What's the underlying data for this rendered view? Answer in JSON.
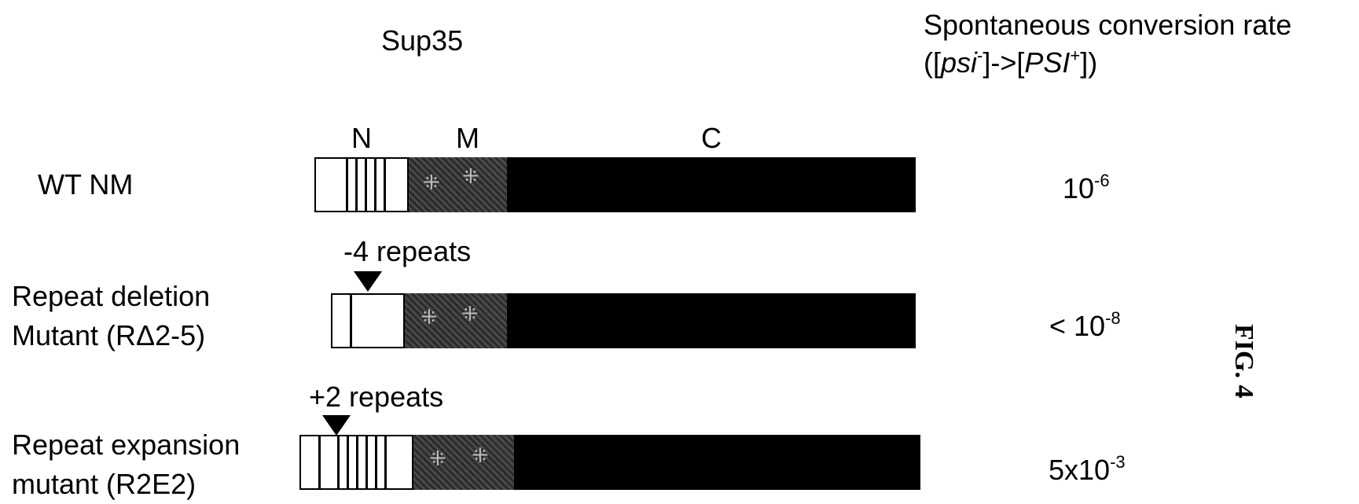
{
  "header": {
    "protein": "Sup35",
    "rate_title": "Spontaneous conversion rate",
    "rate_formula": {
      "open": "([",
      "from_base": "psi",
      "from_sup": "-",
      "arrow": "]->[",
      "to_base": "PSI",
      "to_sup": "+",
      "close": "])"
    }
  },
  "domains": {
    "n": "N",
    "m": "M",
    "c": "C"
  },
  "rows": [
    {
      "label_line1": "WT NM",
      "label_line2": "",
      "annotation": "",
      "n_repeat_stripes": 4,
      "rate_prefix": "10",
      "rate_exp": "-6"
    },
    {
      "label_line1": "Repeat deletion",
      "label_line2": "Mutant (RΔ2-5)",
      "annotation": "-4 repeats",
      "n_repeat_stripes": 0,
      "rate_prefix": "< 10",
      "rate_exp": "-8"
    },
    {
      "label_line1": "Repeat expansion",
      "label_line2": "mutant (R2E2)",
      "annotation": "+2 repeats",
      "n_repeat_stripes": 6,
      "rate_prefix": "5x10",
      "rate_exp": "-3"
    }
  ],
  "figure_label": "FIG. 4",
  "colors": {
    "n_domain": "#ffffff",
    "m_domain": "#333333",
    "c_domain": "#000000",
    "stroke": "#000000"
  }
}
